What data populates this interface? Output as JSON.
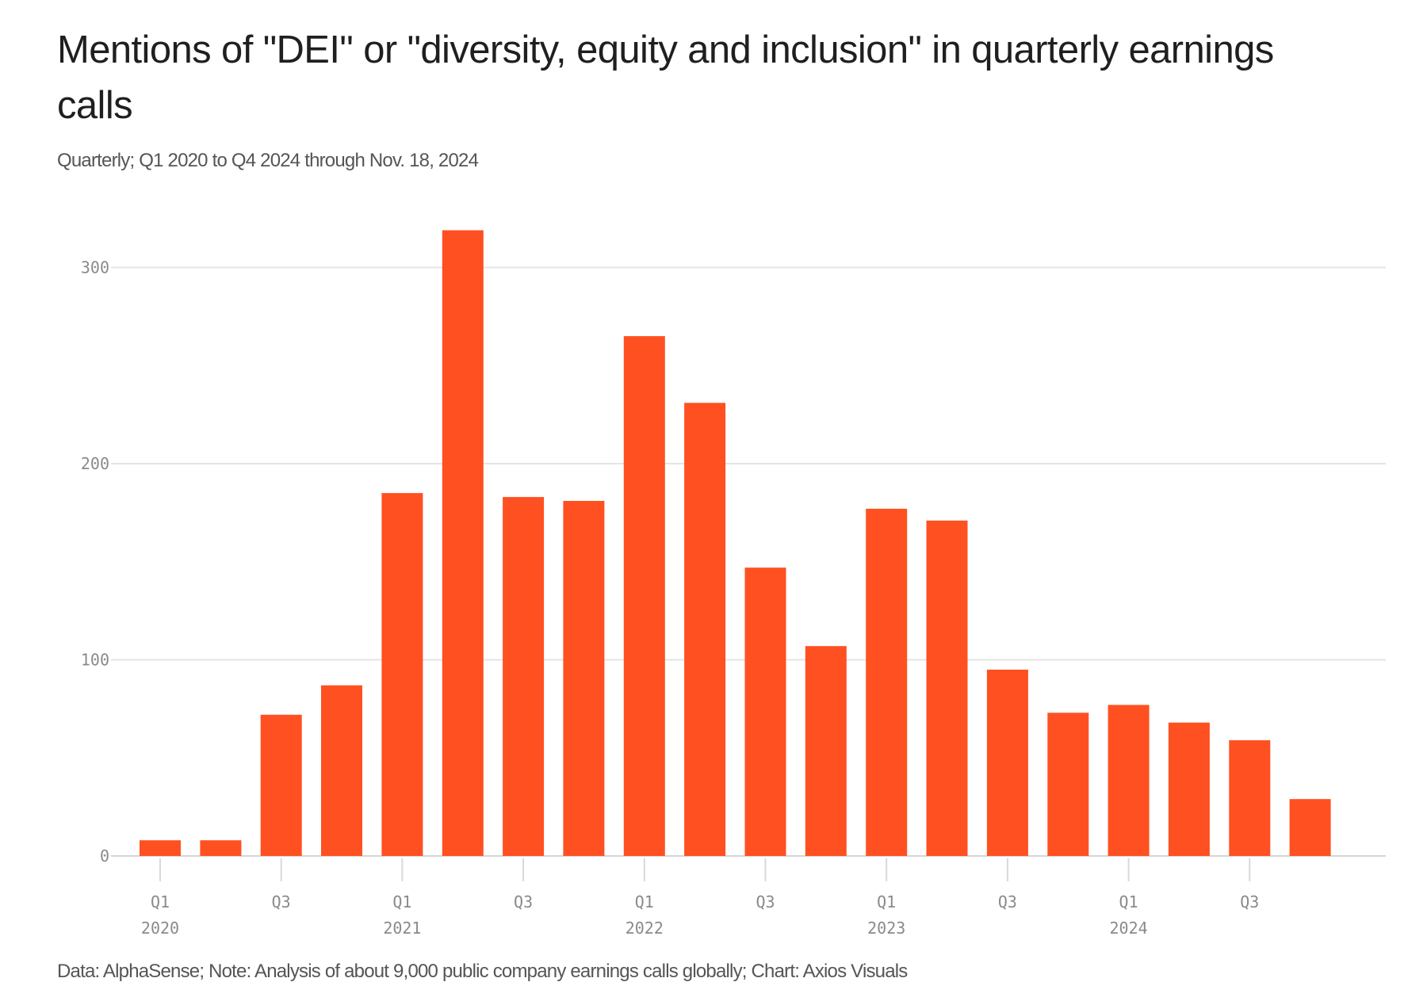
{
  "title": "Mentions of \"DEI\" or \"diversity, equity and inclusion\" in quarterly earnings calls",
  "subtitle": "Quarterly; Q1 2020 to Q4 2024 through Nov. 18, 2024",
  "footer": "Data: AlphaSense; Note: Analysis of about 9,000 public company earnings calls globally; Chart: Axios Visuals",
  "colors": {
    "bar": "#ff5022",
    "grid": "#e4e4e4",
    "axis_text": "#8a8a8a"
  },
  "chart_data": {
    "type": "bar",
    "title": "Mentions of \"DEI\" or \"diversity, equity and inclusion\" in quarterly earnings calls",
    "subtitle": "Quarterly; Q1 2020 to Q4 2024 through Nov. 18, 2024",
    "xlabel": "",
    "ylabel": "",
    "ylim": [
      0,
      320
    ],
    "yticks": [
      0,
      100,
      200,
      300
    ],
    "grid": true,
    "legend": "none",
    "categories": [
      "Q1 2020",
      "Q2 2020",
      "Q3 2020",
      "Q4 2020",
      "Q1 2021",
      "Q2 2021",
      "Q3 2021",
      "Q4 2021",
      "Q1 2022",
      "Q2 2022",
      "Q3 2022",
      "Q4 2022",
      "Q1 2023",
      "Q2 2023",
      "Q3 2023",
      "Q4 2023",
      "Q1 2024",
      "Q2 2024",
      "Q3 2024",
      "Q4 2024"
    ],
    "values": [
      8,
      8,
      72,
      87,
      185,
      319,
      183,
      181,
      265,
      231,
      147,
      107,
      177,
      171,
      95,
      73,
      77,
      68,
      59,
      29
    ],
    "xticks": [
      {
        "index": 0,
        "quarter": "Q1",
        "year": "2020"
      },
      {
        "index": 2,
        "quarter": "Q3",
        "year": ""
      },
      {
        "index": 4,
        "quarter": "Q1",
        "year": "2021"
      },
      {
        "index": 6,
        "quarter": "Q3",
        "year": ""
      },
      {
        "index": 8,
        "quarter": "Q1",
        "year": "2022"
      },
      {
        "index": 10,
        "quarter": "Q3",
        "year": ""
      },
      {
        "index": 12,
        "quarter": "Q1",
        "year": "2023"
      },
      {
        "index": 14,
        "quarter": "Q3",
        "year": ""
      },
      {
        "index": 16,
        "quarter": "Q1",
        "year": "2024"
      },
      {
        "index": 18,
        "quarter": "Q3",
        "year": ""
      }
    ],
    "source": "Data: AlphaSense; Note: Analysis of about 9,000 public company earnings calls globally; Chart: Axios Visuals"
  }
}
